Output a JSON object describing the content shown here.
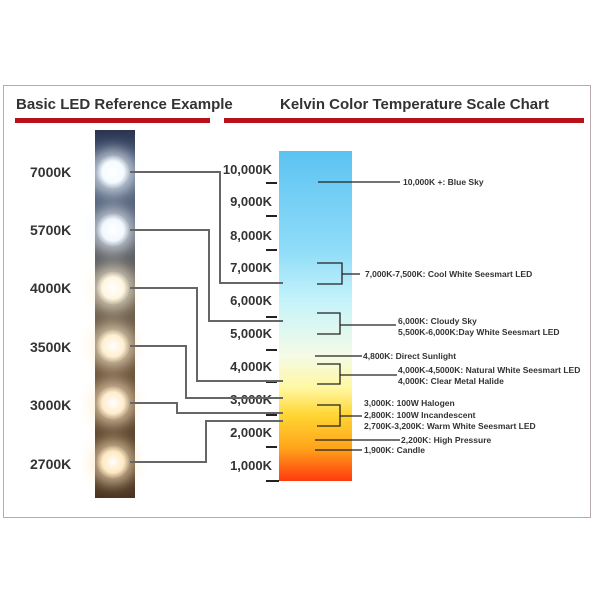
{
  "left_title": "Basic LED Reference Example",
  "right_title": "Kelvin Color Temperature Scale Chart",
  "led_labels": [
    "7000K",
    "5700K",
    "4000K",
    "3500K",
    "3000K",
    "2700K"
  ],
  "led_colors": [
    "#f4fbff",
    "#f2f8ff",
    "#fff6e0",
    "#ffefd0",
    "#ffeccb",
    "#ffe8c0"
  ],
  "scale_ticks": [
    "10,000K",
    "9,000K",
    "8,000K",
    "7,000K",
    "6,000K",
    "5,000K",
    "4,000K",
    "3,000K",
    "2,000K",
    "1,000K"
  ],
  "annotations": {
    "blue_sky": "10,000K +: Blue Sky",
    "cool_white": "7,000K-7,500K: Cool White Seesmart LED",
    "cloudy": "6,000K: Cloudy Sky",
    "day_white": "5,500K-6,000K:Day White Seesmart LED",
    "sunlight": "4,800K: Direct Sunlight",
    "natural_white": "4,000K-4,5000K: Natural White Seesmart LED",
    "metal_halide": "4,000K: Clear Metal Halide",
    "halogen": "3,000K: 100W Halogen",
    "incandescent": "2,800K: 100W Incandescent",
    "warm_white": "2,700K-3,200K: Warm White Seesmart LED",
    "high_pressure": "2,200K: High Pressure",
    "candle": "1,900K: Candle"
  },
  "colors": {
    "accent_bar": "#b5121b"
  }
}
